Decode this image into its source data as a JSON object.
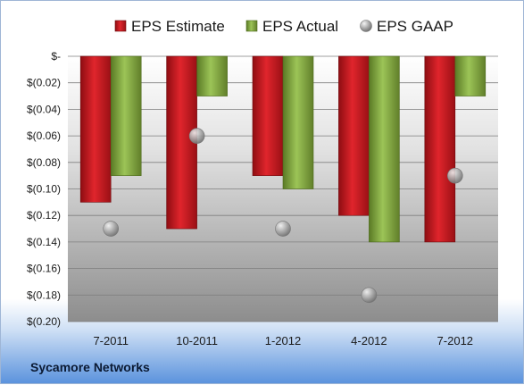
{
  "chart_data": {
    "type": "bar",
    "categories": [
      "7-2011",
      "10-2011",
      "1-2012",
      "4-2012",
      "7-2012"
    ],
    "series": [
      {
        "name": "EPS Estimate",
        "type": "bar",
        "color": "#c4161c",
        "values": [
          -0.11,
          -0.13,
          -0.09,
          -0.12,
          -0.14
        ]
      },
      {
        "name": "EPS Actual",
        "type": "bar",
        "color": "#7aa23a",
        "values": [
          -0.09,
          -0.03,
          -0.1,
          -0.14,
          -0.03
        ]
      },
      {
        "name": "EPS GAAP",
        "type": "scatter",
        "color": "#a9a9a9",
        "values": [
          -0.13,
          -0.06,
          -0.13,
          -0.18,
          -0.09
        ]
      }
    ],
    "ylim": [
      -0.2,
      0
    ],
    "yticks": [
      0,
      -0.02,
      -0.04,
      -0.06,
      -0.08,
      -0.1,
      -0.12,
      -0.14,
      -0.16,
      -0.18,
      -0.2
    ],
    "ytick_labels": [
      "$-",
      "$(0.02)",
      "$(0.04)",
      "$(0.06)",
      "$(0.08)",
      "$(0.10)",
      "$(0.12)",
      "$(0.14)",
      "$(0.16)",
      "$(0.18)",
      "$(0.20)"
    ],
    "legend_position": "top",
    "grid": true
  },
  "footer": {
    "company": "Sycamore Networks"
  }
}
